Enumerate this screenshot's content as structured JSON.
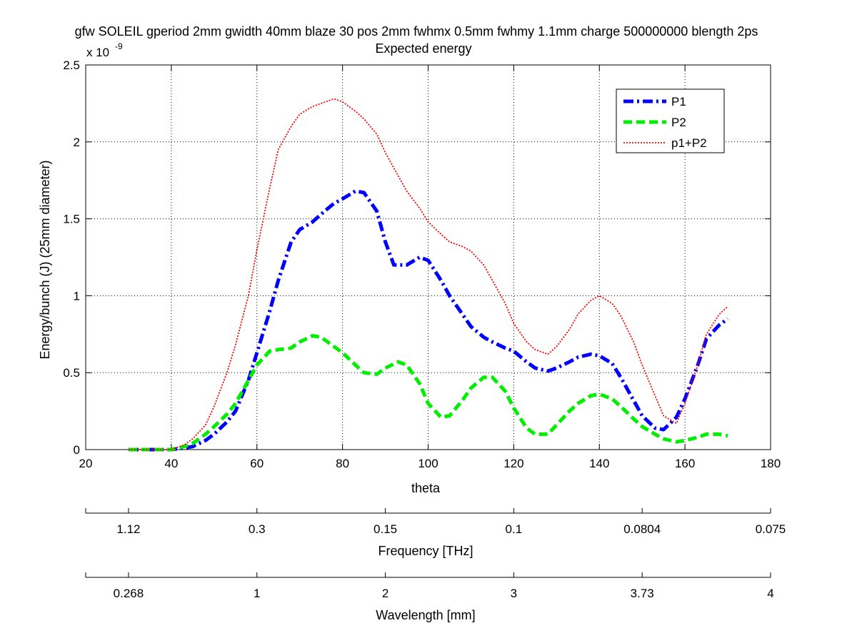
{
  "chart_data": {
    "type": "line",
    "title": "gfw SOLEIL gperiod 2mm gwidth 40mm blaze 30 pos 2mm fwhmx 0.5mm fwhmy 1.1mm charge 500000000 blength 2ps",
    "subtitle": "Expected energy",
    "xlabel": "theta",
    "ylabel": "Energy/bunch (J) (25mm diameter)",
    "y_exponent_label": "x 10",
    "y_exponent_power": "-9",
    "xlim": [
      20,
      180
    ],
    "ylim": [
      0,
      2.5
    ],
    "x_ticks": [
      20,
      40,
      60,
      80,
      100,
      120,
      140,
      160,
      180
    ],
    "x_tick_labels": [
      "20",
      "40",
      "60",
      "80",
      "100",
      "120",
      "140",
      "160",
      "180"
    ],
    "y_ticks": [
      0,
      0.5,
      1,
      1.5,
      2,
      2.5
    ],
    "y_tick_labels": [
      "0",
      "0.5",
      "1",
      "1.5",
      "2",
      "2.5"
    ],
    "grid": true,
    "grid_style": "dotted",
    "legend_position": "top-right",
    "series": [
      {
        "name": "P1",
        "color": "#0000ff",
        "style": "dash-dot",
        "x": [
          30,
          35,
          40,
          43,
          45,
          48,
          50,
          53,
          55,
          58,
          60,
          63,
          65,
          68,
          70,
          73,
          75,
          78,
          80,
          83,
          85,
          88,
          90,
          92,
          95,
          98,
          100,
          103,
          105,
          108,
          110,
          113,
          115,
          118,
          120,
          123,
          125,
          128,
          130,
          133,
          135,
          138,
          140,
          143,
          145,
          148,
          150,
          153,
          155,
          158,
          160,
          163,
          165,
          168,
          170
        ],
        "y": [
          0,
          0,
          0,
          0.01,
          0.02,
          0.06,
          0.1,
          0.18,
          0.25,
          0.45,
          0.63,
          0.9,
          1.1,
          1.35,
          1.43,
          1.48,
          1.53,
          1.6,
          1.63,
          1.68,
          1.67,
          1.55,
          1.35,
          1.2,
          1.2,
          1.25,
          1.23,
          1.1,
          1.0,
          0.88,
          0.8,
          0.73,
          0.7,
          0.66,
          0.64,
          0.57,
          0.53,
          0.51,
          0.53,
          0.57,
          0.6,
          0.62,
          0.61,
          0.56,
          0.47,
          0.32,
          0.22,
          0.14,
          0.13,
          0.21,
          0.33,
          0.55,
          0.72,
          0.81,
          0.85
        ]
      },
      {
        "name": "P2",
        "color": "#00ee00",
        "style": "dashed",
        "x": [
          30,
          35,
          40,
          43,
          45,
          48,
          50,
          53,
          55,
          58,
          60,
          63,
          65,
          68,
          70,
          73,
          75,
          78,
          80,
          83,
          85,
          88,
          90,
          93,
          95,
          98,
          100,
          103,
          105,
          108,
          110,
          113,
          115,
          118,
          120,
          123,
          125,
          128,
          130,
          133,
          135,
          138,
          140,
          143,
          145,
          148,
          150,
          153,
          155,
          158,
          160,
          163,
          165,
          168,
          170
        ],
        "y": [
          0,
          0,
          0,
          0.02,
          0.04,
          0.1,
          0.15,
          0.23,
          0.3,
          0.45,
          0.55,
          0.64,
          0.65,
          0.66,
          0.7,
          0.74,
          0.73,
          0.67,
          0.63,
          0.55,
          0.5,
          0.49,
          0.53,
          0.57,
          0.55,
          0.43,
          0.3,
          0.21,
          0.22,
          0.32,
          0.4,
          0.47,
          0.47,
          0.38,
          0.27,
          0.14,
          0.1,
          0.1,
          0.16,
          0.25,
          0.3,
          0.35,
          0.36,
          0.33,
          0.28,
          0.2,
          0.15,
          0.1,
          0.07,
          0.05,
          0.06,
          0.08,
          0.1,
          0.1,
          0.09
        ]
      },
      {
        "name": "p1+P2",
        "color": "#ff0000",
        "style": "dotted",
        "x": [
          30,
          35,
          40,
          43,
          45,
          48,
          50,
          53,
          55,
          58,
          60,
          63,
          65,
          68,
          70,
          73,
          75,
          78,
          80,
          83,
          85,
          88,
          90,
          93,
          95,
          98,
          100,
          103,
          105,
          108,
          110,
          113,
          115,
          118,
          120,
          123,
          125,
          128,
          130,
          133,
          135,
          138,
          140,
          143,
          145,
          148,
          150,
          153,
          155,
          158,
          160,
          163,
          165,
          168,
          170
        ],
        "y": [
          0,
          0,
          0,
          0.03,
          0.07,
          0.16,
          0.28,
          0.5,
          0.68,
          1.0,
          1.3,
          1.7,
          1.95,
          2.1,
          2.18,
          2.23,
          2.25,
          2.28,
          2.26,
          2.2,
          2.15,
          2.05,
          1.93,
          1.78,
          1.68,
          1.57,
          1.48,
          1.4,
          1.35,
          1.32,
          1.29,
          1.2,
          1.1,
          0.95,
          0.82,
          0.7,
          0.65,
          0.62,
          0.67,
          0.78,
          0.88,
          0.97,
          1.0,
          0.95,
          0.87,
          0.7,
          0.55,
          0.35,
          0.22,
          0.17,
          0.3,
          0.55,
          0.75,
          0.88,
          0.93
        ]
      }
    ],
    "secondary_axes": [
      {
        "label": "Frequency [THz]",
        "tick_positions_theta": [
          30,
          60,
          90,
          120,
          150,
          180
        ],
        "tick_labels": [
          "1.12",
          "0.3",
          "0.15",
          "0.1",
          "0.0804",
          "0.075"
        ]
      },
      {
        "label": "Wavelength [mm]",
        "tick_positions_theta": [
          30,
          60,
          90,
          120,
          150,
          180
        ],
        "tick_labels": [
          "0.268",
          "1",
          "2",
          "3",
          "3.73",
          "4"
        ]
      }
    ]
  }
}
